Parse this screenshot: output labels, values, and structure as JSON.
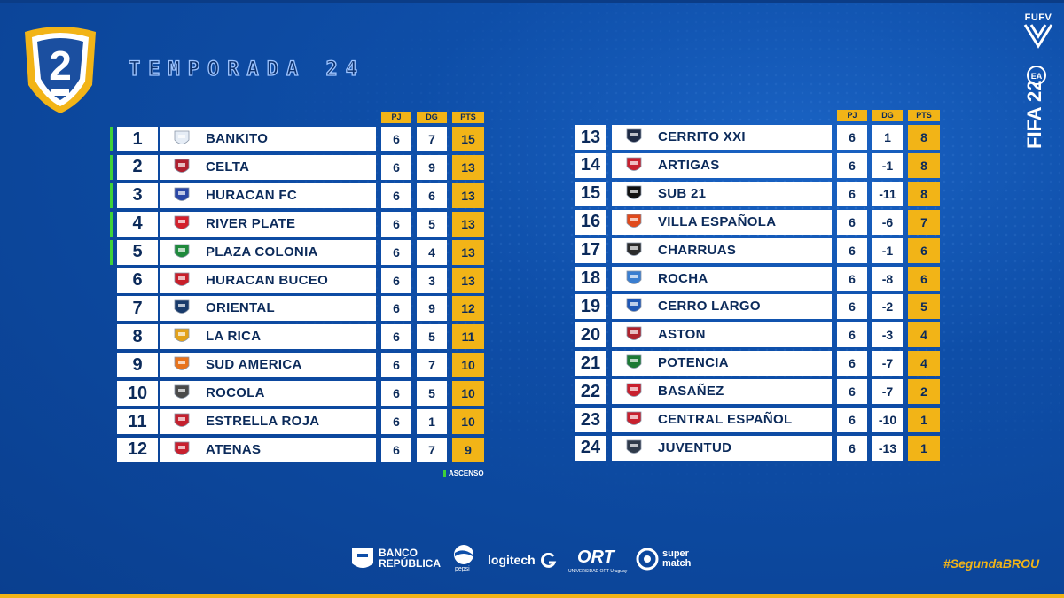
{
  "header": {
    "crest_number": "2",
    "title": "TEMPORADA 24",
    "federation_logo_text": "FUFV",
    "game_logo_text": "FIFA 22"
  },
  "columns": {
    "pj": "PJ",
    "dg": "DG",
    "pts": "PTS"
  },
  "left_table": [
    {
      "pos": "1",
      "team": "BANKITO",
      "pj": "6",
      "dg": "7",
      "pts": "15",
      "ascenso": true,
      "shield": "#e6edf6",
      "icon": "bankito-shield-icon"
    },
    {
      "pos": "2",
      "team": "CELTA",
      "pj": "6",
      "dg": "9",
      "pts": "13",
      "ascenso": true,
      "shield": "#b01e2e",
      "icon": "celta-shield-icon"
    },
    {
      "pos": "3",
      "team": "HURACAN FC",
      "pj": "6",
      "dg": "6",
      "pts": "13",
      "ascenso": true,
      "shield": "#2a47a6",
      "icon": "huracan-fc-shield-icon"
    },
    {
      "pos": "4",
      "team": "RIVER PLATE",
      "pj": "6",
      "dg": "5",
      "pts": "13",
      "ascenso": true,
      "shield": "#d3202c",
      "icon": "river-plate-shield-icon"
    },
    {
      "pos": "5",
      "team": "PLAZA COLONIA",
      "pj": "6",
      "dg": "4",
      "pts": "13",
      "ascenso": true,
      "shield": "#1f8a3c",
      "icon": "plaza-colonia-shield-icon"
    },
    {
      "pos": "6",
      "team": "HURACAN BUCEO",
      "pj": "6",
      "dg": "3",
      "pts": "13",
      "ascenso": false,
      "shield": "#c81f2a",
      "icon": "huracan-buceo-shield-icon"
    },
    {
      "pos": "7",
      "team": "ORIENTAL",
      "pj": "6",
      "dg": "9",
      "pts": "12",
      "ascenso": false,
      "shield": "#183a6b",
      "icon": "oriental-shield-icon"
    },
    {
      "pos": "8",
      "team": "LA RICA",
      "pj": "6",
      "dg": "5",
      "pts": "11",
      "ascenso": false,
      "shield": "#e3a21a",
      "icon": "la-rica-shield-icon"
    },
    {
      "pos": "9",
      "team": "SUD AMERICA",
      "pj": "6",
      "dg": "7",
      "pts": "10",
      "ascenso": false,
      "shield": "#e8731c",
      "icon": "sud-america-shield-icon"
    },
    {
      "pos": "10",
      "team": "ROCOLA",
      "pj": "6",
      "dg": "5",
      "pts": "10",
      "ascenso": false,
      "shield": "#4a4a4a",
      "icon": "rocola-shield-icon"
    },
    {
      "pos": "11",
      "team": "ESTRELLA ROJA",
      "pj": "6",
      "dg": "1",
      "pts": "10",
      "ascenso": false,
      "shield": "#c4202e",
      "icon": "estrella-roja-shield-icon"
    },
    {
      "pos": "12",
      "team": "ATENAS",
      "pj": "6",
      "dg": "7",
      "pts": "9",
      "ascenso": false,
      "shield": "#c8202e",
      "icon": "atenas-shield-icon"
    }
  ],
  "right_table": [
    {
      "pos": "13",
      "team": "CERRITO XXI",
      "pj": "6",
      "dg": "1",
      "pts": "8",
      "shield": "#1e2a44",
      "icon": "cerrito-xxi-shield-icon"
    },
    {
      "pos": "14",
      "team": "ARTIGAS",
      "pj": "6",
      "dg": "-1",
      "pts": "8",
      "shield": "#c8202e",
      "icon": "artigas-shield-icon"
    },
    {
      "pos": "15",
      "team": "SUB 21",
      "pj": "6",
      "dg": "-11",
      "pts": "8",
      "shield": "#111111",
      "icon": "sub-21-shield-icon"
    },
    {
      "pos": "16",
      "team": "VILLA ESPAÑOLA",
      "pj": "6",
      "dg": "-6",
      "pts": "7",
      "shield": "#e04a1c",
      "icon": "villa-espanola-shield-icon"
    },
    {
      "pos": "17",
      "team": "CHARRUAS",
      "pj": "6",
      "dg": "-1",
      "pts": "6",
      "shield": "#2b2b2b",
      "icon": "charruas-shield-icon"
    },
    {
      "pos": "18",
      "team": "ROCHA",
      "pj": "6",
      "dg": "-8",
      "pts": "6",
      "shield": "#3a7ed0",
      "icon": "rocha-shield-icon"
    },
    {
      "pos": "19",
      "team": "CERRO LARGO",
      "pj": "6",
      "dg": "-2",
      "pts": "5",
      "shield": "#1f57b5",
      "icon": "cerro-largo-shield-icon"
    },
    {
      "pos": "20",
      "team": "ASTON",
      "pj": "6",
      "dg": "-3",
      "pts": "4",
      "shield": "#b0232d",
      "icon": "aston-shield-icon"
    },
    {
      "pos": "21",
      "team": "POTENCIA",
      "pj": "6",
      "dg": "-7",
      "pts": "4",
      "shield": "#1d7a34",
      "icon": "potencia-shield-icon"
    },
    {
      "pos": "22",
      "team": "BASAÑEZ",
      "pj": "6",
      "dg": "-7",
      "pts": "2",
      "shield": "#c8202e",
      "icon": "basanez-shield-icon"
    },
    {
      "pos": "23",
      "team": "CENTRAL ESPAÑOL",
      "pj": "6",
      "dg": "-10",
      "pts": "1",
      "shield": "#c8202e",
      "icon": "central-espanol-shield-icon"
    },
    {
      "pos": "24",
      "team": "JUVENTUD",
      "pj": "6",
      "dg": "-13",
      "pts": "1",
      "shield": "#2f3a4a",
      "icon": "juventud-shield-icon"
    }
  ],
  "legend": {
    "label": "ASCENSO"
  },
  "sponsors": {
    "banco_line1": "BANCO",
    "banco_line2": "REPÚBLICA",
    "pepsi": "pepsi",
    "logitech": "logitech",
    "ort": "ORT",
    "ort_sub": "UNIVERSIDAD ORT Uruguay",
    "supermatch_line1": "super",
    "supermatch_line2": "match"
  },
  "hashtag": "#SegundaBROU",
  "colors": {
    "accent": "#f2b417",
    "ascenso": "#3ed13a",
    "bg": "#0e4ea8",
    "text": "#0b2a5a"
  }
}
